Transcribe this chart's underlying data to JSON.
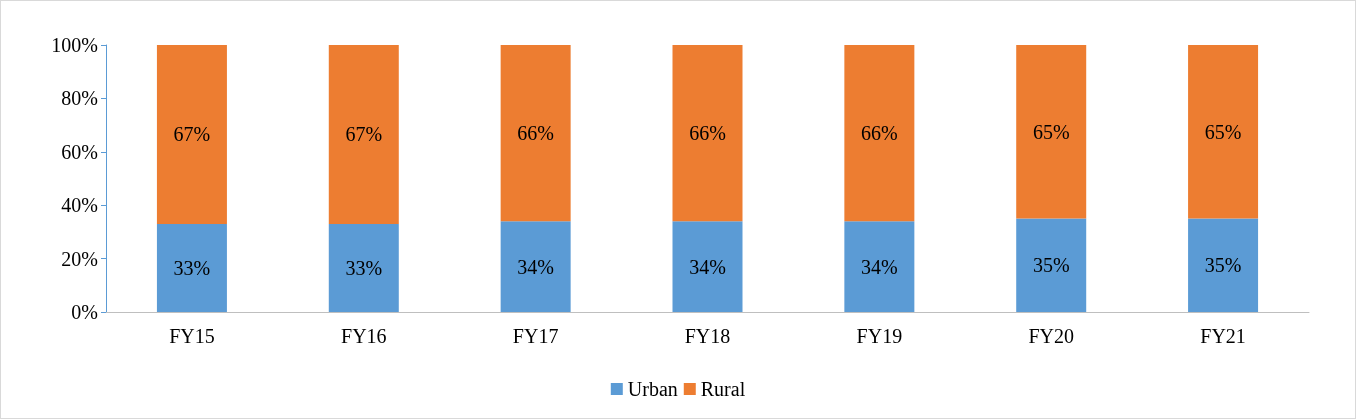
{
  "chart_data": {
    "type": "bar",
    "stacked": true,
    "categories": [
      "FY15",
      "FY16",
      "FY17",
      "FY18",
      "FY19",
      "FY20",
      "FY21"
    ],
    "series": [
      {
        "name": "Urban",
        "color": "#5b9bd5",
        "values": [
          33,
          33,
          34,
          34,
          34,
          35,
          35
        ],
        "value_labels": [
          "33%",
          "33%",
          "34%",
          "34%",
          "34%",
          "35%",
          "35%"
        ]
      },
      {
        "name": "Rural",
        "color": "#ed7d31",
        "values": [
          67,
          67,
          66,
          66,
          66,
          65,
          65
        ],
        "value_labels": [
          "67%",
          "67%",
          "66%",
          "66%",
          "66%",
          "65%",
          "65%"
        ]
      }
    ],
    "ylim": [
      0,
      100
    ],
    "yticks": [
      {
        "value": 0,
        "label": "0%"
      },
      {
        "value": 20,
        "label": "20%"
      },
      {
        "value": 40,
        "label": "40%"
      },
      {
        "value": 60,
        "label": "60%"
      },
      {
        "value": 80,
        "label": "80%"
      },
      {
        "value": 100,
        "label": "100%"
      }
    ],
    "grid": false,
    "legend": "bottom"
  }
}
